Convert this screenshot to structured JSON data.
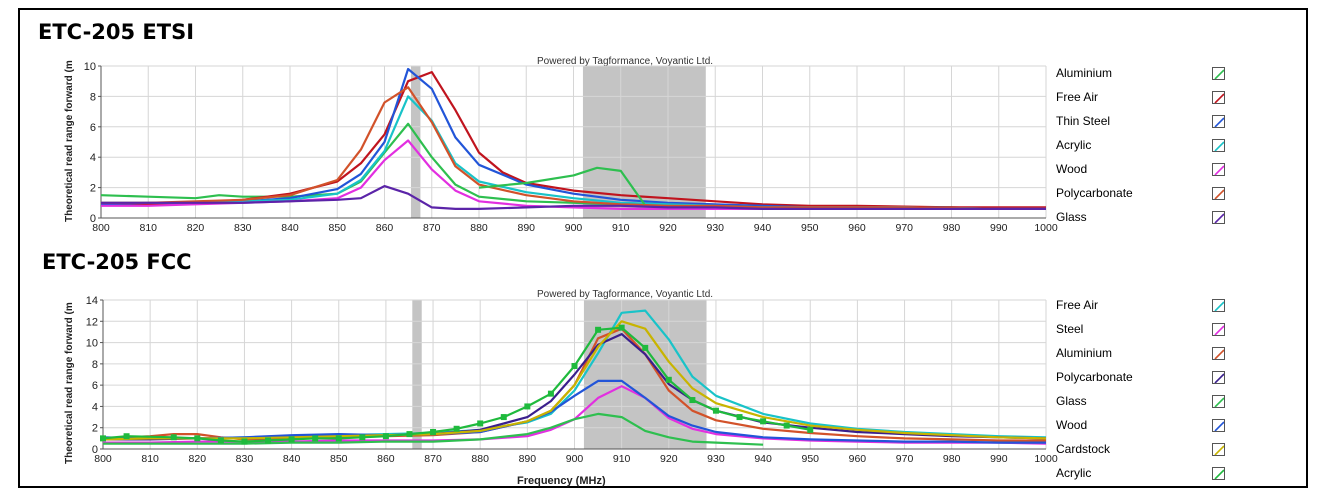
{
  "chart_data": [
    {
      "type": "line",
      "title": "ETC-205 ETSI",
      "credit": "Powered by Tagformance, Voyantic Ltd.",
      "ylabel": "Theoretical read range forward (m",
      "xlabel": "",
      "xlim": [
        800,
        1000
      ],
      "ylim": [
        0,
        10
      ],
      "x_ticks": [
        800,
        810,
        820,
        830,
        840,
        850,
        860,
        870,
        880,
        890,
        900,
        910,
        920,
        930,
        940,
        950,
        960,
        970,
        980,
        990,
        1000
      ],
      "y_ticks": [
        0,
        2,
        4,
        6,
        8,
        10
      ],
      "shaded_bands": [
        [
          865.6,
          867.6
        ],
        [
          902,
          928
        ]
      ],
      "grid": true,
      "legend_position": "right",
      "series": [
        {
          "name": "Aluminium",
          "color": "#2ebf4f",
          "x": [
            800,
            810,
            820,
            825,
            830,
            840,
            850,
            855,
            860,
            865,
            870,
            875,
            880,
            890,
            900,
            905,
            910,
            915,
            920,
            930,
            940,
            950,
            960,
            970,
            980,
            990,
            1000
          ],
          "y": [
            1.5,
            1.4,
            1.3,
            1.5,
            1.4,
            1.4,
            1.6,
            2.4,
            4.3,
            6.2,
            4.0,
            2.2,
            1.4,
            1.1,
            1.0,
            0.95,
            0.9,
            0.85,
            0.8,
            0.8,
            0.7,
            0.7,
            0.7,
            0.7,
            0.7,
            0.6,
            0.6
          ]
        },
        {
          "name": "Free Air",
          "color": "#c0141e",
          "x": [
            800,
            810,
            820,
            830,
            840,
            850,
            855,
            860,
            865,
            870,
            875,
            880,
            885,
            890,
            900,
            910,
            920,
            930,
            940,
            950,
            960,
            970,
            980,
            990,
            1000
          ],
          "y": [
            0.9,
            0.9,
            1.0,
            1.2,
            1.6,
            2.4,
            3.6,
            5.5,
            9.0,
            9.6,
            7.1,
            4.3,
            3.0,
            2.3,
            1.8,
            1.5,
            1.3,
            1.1,
            0.9,
            0.8,
            0.8,
            0.75,
            0.7,
            0.7,
            0.7
          ]
        },
        {
          "name": "Thin Steel",
          "color": "#2255d8",
          "x": [
            800,
            810,
            820,
            830,
            840,
            850,
            855,
            860,
            865,
            870,
            875,
            880,
            890,
            900,
            910,
            920,
            930,
            940,
            950,
            960,
            970,
            980,
            990,
            1000
          ],
          "y": [
            0.9,
            1.0,
            1.0,
            1.1,
            1.3,
            1.9,
            2.9,
            5.0,
            9.8,
            8.5,
            5.3,
            3.5,
            2.2,
            1.6,
            1.2,
            1.0,
            0.9,
            0.8,
            0.7,
            0.7,
            0.7,
            0.65,
            0.6,
            0.6
          ]
        },
        {
          "name": "Acrylic",
          "color": "#19c3c8",
          "x": [
            800,
            810,
            820,
            830,
            840,
            850,
            855,
            860,
            865,
            870,
            875,
            880,
            890,
            900,
            910,
            920,
            930,
            940,
            950,
            960,
            970,
            980,
            990,
            1000
          ],
          "y": [
            1.0,
            1.0,
            1.0,
            1.1,
            1.2,
            1.6,
            2.5,
            4.4,
            8.0,
            6.4,
            3.6,
            2.4,
            1.7,
            1.3,
            1.0,
            0.9,
            0.8,
            0.7,
            0.7,
            0.7,
            0.7,
            0.65,
            0.6,
            0.6
          ]
        },
        {
          "name": "Wood",
          "color": "#e22fe0",
          "x": [
            800,
            810,
            820,
            830,
            840,
            850,
            855,
            860,
            865,
            870,
            875,
            880,
            890,
            900,
            910,
            920,
            930,
            940,
            950,
            960,
            970,
            980,
            990,
            1000
          ],
          "y": [
            0.8,
            0.8,
            0.9,
            1.0,
            1.1,
            1.3,
            2.0,
            3.8,
            5.1,
            3.2,
            1.8,
            1.1,
            0.8,
            0.7,
            0.6,
            0.6,
            0.6,
            0.6,
            0.6,
            0.6,
            0.6,
            0.6,
            0.6,
            0.6
          ]
        },
        {
          "name": "Polycarbonate",
          "color": "#d2522a",
          "x": [
            800,
            810,
            820,
            830,
            840,
            850,
            855,
            860,
            865,
            870,
            875,
            880,
            890,
            900,
            910,
            920,
            930,
            940,
            950,
            960,
            970,
            980,
            990,
            1000
          ],
          "y": [
            1.0,
            1.0,
            1.1,
            1.2,
            1.5,
            2.5,
            4.5,
            7.6,
            8.6,
            6.3,
            3.4,
            2.2,
            1.5,
            1.1,
            0.9,
            0.8,
            0.8,
            0.7,
            0.7,
            0.7,
            0.7,
            0.65,
            0.6,
            0.6
          ]
        },
        {
          "name": "Glass",
          "color": "#5b24a8",
          "x": [
            800,
            810,
            820,
            830,
            840,
            850,
            855,
            860,
            865,
            870,
            875,
            880,
            890,
            900,
            910,
            920,
            930,
            940,
            950,
            960,
            970,
            980,
            990,
            1000
          ],
          "y": [
            1.0,
            1.0,
            1.0,
            1.0,
            1.1,
            1.2,
            1.3,
            2.1,
            1.6,
            0.7,
            0.6,
            0.6,
            0.7,
            0.8,
            0.8,
            0.7,
            0.7,
            0.6,
            0.6,
            0.6,
            0.6,
            0.6,
            0.6,
            0.6
          ]
        },
        {
          "name": "",
          "color": "#2ebf4f",
          "x": [
            880,
            890,
            900,
            905,
            910,
            915
          ],
          "y": [
            2.0,
            2.3,
            2.8,
            3.3,
            3.1,
            0.9
          ]
        }
      ]
    },
    {
      "type": "line",
      "title": "ETC-205 FCC",
      "credit": "Powered by Tagformance, Voyantic Ltd.",
      "ylabel": "Theoretical read range forward (m",
      "xlabel": "Frequency (MHz)",
      "xlim": [
        800,
        1000
      ],
      "ylim": [
        0,
        14
      ],
      "x_ticks": [
        800,
        810,
        820,
        830,
        840,
        850,
        860,
        870,
        880,
        890,
        900,
        910,
        920,
        930,
        940,
        950,
        960,
        970,
        980,
        990,
        1000
      ],
      "y_ticks": [
        0,
        2,
        4,
        6,
        8,
        10,
        12,
        14
      ],
      "shaded_bands": [
        [
          865.6,
          867.6
        ],
        [
          902,
          928
        ]
      ],
      "grid": true,
      "legend_position": "right",
      "series": [
        {
          "name": "Free Air",
          "color": "#19c3c8",
          "x": [
            800,
            810,
            820,
            830,
            840,
            850,
            860,
            870,
            880,
            890,
            895,
            900,
            905,
            910,
            915,
            920,
            925,
            930,
            940,
            950,
            960,
            970,
            980,
            990,
            1000
          ],
          "y": [
            0.9,
            1.0,
            1.0,
            1.1,
            1.2,
            1.3,
            1.4,
            1.5,
            1.8,
            2.5,
            3.3,
            5.5,
            9.0,
            12.8,
            13.0,
            10.3,
            6.8,
            5.0,
            3.3,
            2.4,
            1.9,
            1.6,
            1.4,
            1.2,
            1.1
          ]
        },
        {
          "name": "Steel",
          "color": "#e22fe0",
          "x": [
            800,
            810,
            820,
            830,
            840,
            850,
            860,
            870,
            880,
            890,
            895,
            900,
            905,
            910,
            915,
            920,
            925,
            930,
            940,
            950,
            960,
            970,
            980,
            990,
            1000
          ],
          "y": [
            0.6,
            0.6,
            0.7,
            0.7,
            0.7,
            0.8,
            0.8,
            0.8,
            0.9,
            1.2,
            1.8,
            2.8,
            4.8,
            5.9,
            4.8,
            2.9,
            1.9,
            1.4,
            1.0,
            0.8,
            0.7,
            0.6,
            0.6,
            0.6,
            0.5
          ]
        },
        {
          "name": "Aluminium",
          "color": "#d2522a",
          "x": [
            800,
            810,
            815,
            820,
            825,
            830,
            840,
            850,
            860,
            870,
            880,
            890,
            895,
            900,
            905,
            910,
            915,
            920,
            925,
            930,
            940,
            950,
            960,
            970,
            980,
            990,
            1000
          ],
          "y": [
            1.0,
            1.2,
            1.4,
            1.4,
            1.1,
            0.9,
            1.0,
            1.1,
            1.2,
            1.3,
            1.6,
            2.6,
            3.6,
            6.0,
            10.4,
            11.3,
            8.9,
            5.5,
            3.6,
            2.7,
            1.9,
            1.5,
            1.2,
            1.0,
            0.9,
            0.8,
            0.8
          ]
        },
        {
          "name": "Polycarbonate",
          "color": "#3a1f8c",
          "x": [
            800,
            810,
            820,
            830,
            840,
            850,
            860,
            870,
            880,
            890,
            895,
            900,
            905,
            910,
            915,
            920,
            925,
            930,
            940,
            950,
            960,
            970,
            980,
            990,
            1000
          ],
          "y": [
            0.9,
            0.9,
            1.0,
            1.0,
            1.1,
            1.2,
            1.3,
            1.4,
            1.8,
            3.0,
            4.5,
            7.0,
            9.8,
            10.8,
            8.9,
            6.1,
            4.6,
            3.6,
            2.5,
            2.0,
            1.6,
            1.4,
            1.2,
            1.1,
            1.0
          ]
        },
        {
          "name": "Glass",
          "color": "#2ebf4f",
          "x": [
            800,
            810,
            820,
            830,
            840,
            850,
            860,
            870,
            880,
            890,
            895,
            900,
            905,
            910,
            915,
            920,
            925,
            930,
            940
          ],
          "y": [
            0.5,
            0.5,
            0.5,
            0.5,
            0.6,
            0.6,
            0.7,
            0.7,
            0.9,
            1.4,
            2.0,
            2.8,
            3.3,
            3.0,
            1.7,
            1.1,
            0.7,
            0.6,
            0.4
          ]
        },
        {
          "name": "Wood",
          "color": "#2255d8",
          "x": [
            800,
            810,
            820,
            830,
            840,
            850,
            860,
            870,
            880,
            890,
            895,
            900,
            905,
            910,
            915,
            920,
            925,
            930,
            940,
            950,
            960,
            970,
            980,
            990,
            1000
          ],
          "y": [
            1.1,
            1.0,
            1.0,
            1.1,
            1.3,
            1.4,
            1.3,
            1.4,
            1.6,
            2.6,
            3.5,
            5.0,
            6.4,
            6.4,
            4.8,
            3.1,
            2.2,
            1.6,
            1.1,
            0.9,
            0.8,
            0.7,
            0.7,
            0.6,
            0.6
          ]
        },
        {
          "name": "Cardstock",
          "color": "#c8b400",
          "x": [
            800,
            810,
            820,
            830,
            840,
            850,
            860,
            870,
            880,
            890,
            895,
            900,
            905,
            910,
            915,
            920,
            925,
            930,
            940,
            950,
            960,
            970,
            980,
            990,
            1000
          ],
          "y": [
            0.9,
            1.0,
            1.0,
            1.0,
            1.1,
            1.2,
            1.3,
            1.4,
            1.7,
            2.6,
            3.6,
            6.0,
            9.6,
            12.0,
            11.3,
            8.2,
            5.7,
            4.3,
            3.0,
            2.2,
            1.8,
            1.5,
            1.3,
            1.1,
            1.0
          ]
        },
        {
          "name": "Acrylic",
          "color": "#1fba3d",
          "x": [
            800,
            805,
            815,
            820,
            825,
            830,
            835,
            840,
            845,
            850,
            855,
            860,
            865,
            870,
            875,
            880,
            885,
            890,
            895,
            900,
            905,
            910,
            915,
            920,
            925,
            930,
            935,
            940,
            945,
            950
          ],
          "y": [
            1.0,
            1.2,
            1.1,
            1.0,
            0.8,
            0.7,
            0.8,
            0.9,
            1.0,
            1.0,
            1.1,
            1.2,
            1.4,
            1.6,
            1.9,
            2.4,
            3.0,
            4.0,
            5.2,
            7.8,
            11.2,
            11.4,
            9.5,
            6.5,
            4.6,
            3.6,
            3.0,
            2.6,
            2.2,
            1.8
          ],
          "markers": true
        }
      ]
    }
  ]
}
